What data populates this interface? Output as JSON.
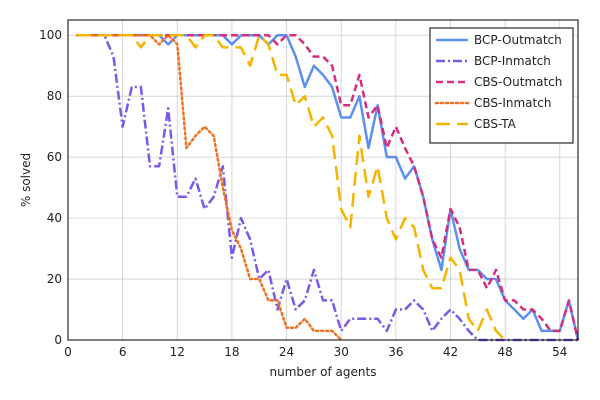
{
  "chart_data": {
    "type": "line",
    "title": "",
    "xlabel": "number of agents",
    "ylabel": "% solved",
    "xlim": [
      0,
      56
    ],
    "ylim": [
      0,
      105
    ],
    "xticks": [
      0,
      6,
      12,
      18,
      24,
      30,
      36,
      42,
      48,
      54
    ],
    "yticks": [
      0,
      20,
      40,
      60,
      80,
      100
    ],
    "grid": true,
    "legend_position": "top-right",
    "series": [
      {
        "name": "BCP-Outmatch",
        "color": "#5b8ff0",
        "dash": "solid",
        "x": [
          1,
          2,
          3,
          4,
          5,
          6,
          7,
          8,
          9,
          10,
          11,
          12,
          13,
          14,
          15,
          16,
          17,
          18,
          19,
          20,
          21,
          22,
          23,
          24,
          25,
          26,
          27,
          28,
          29,
          30,
          31,
          32,
          33,
          34,
          35,
          36,
          37,
          38,
          39,
          40,
          41,
          42,
          43,
          44,
          45,
          46,
          47,
          48,
          49,
          50,
          51,
          52,
          53,
          54,
          55,
          56
        ],
        "y": [
          100,
          100,
          100,
          100,
          100,
          100,
          100,
          100,
          100,
          100,
          97,
          100,
          100,
          100,
          100,
          100,
          100,
          97,
          100,
          100,
          100,
          97,
          100,
          100,
          93,
          83,
          90,
          87,
          83,
          73,
          73,
          80,
          63,
          77,
          60,
          60,
          53,
          57,
          47,
          33,
          23,
          43,
          30,
          23,
          23,
          20,
          20,
          13,
          10,
          7,
          10,
          3,
          3,
          3,
          13,
          0
        ]
      },
      {
        "name": "BCP-Inmatch",
        "color": "#7b59e8",
        "dash": "dashdot",
        "x": [
          1,
          2,
          3,
          4,
          5,
          6,
          7,
          8,
          9,
          10,
          11,
          12,
          13,
          14,
          15,
          16,
          17,
          18,
          19,
          20,
          21,
          22,
          23,
          24,
          25,
          26,
          27,
          28,
          29,
          30,
          31,
          32,
          33,
          34,
          35,
          36,
          37,
          38,
          39,
          40,
          41,
          42,
          43,
          44,
          45,
          46,
          47,
          48,
          49,
          50,
          51,
          52,
          53,
          54,
          55,
          56
        ],
        "y": [
          100,
          100,
          100,
          100,
          93,
          70,
          83,
          83,
          57,
          57,
          76,
          47,
          47,
          53,
          43,
          47,
          57,
          27,
          40,
          33,
          20,
          23,
          10,
          20,
          10,
          13,
          23,
          13,
          13,
          3,
          7,
          7,
          7,
          7,
          3,
          10,
          10,
          13,
          10,
          3,
          7,
          10,
          7,
          3,
          0,
          0,
          0,
          0,
          0,
          0,
          0,
          0,
          0,
          0,
          0,
          0
        ]
      },
      {
        "name": "CBS-Outmatch",
        "color": "#d62c7e",
        "dash": "dashed",
        "x": [
          1,
          2,
          3,
          4,
          5,
          6,
          7,
          8,
          9,
          10,
          11,
          12,
          13,
          14,
          15,
          16,
          17,
          18,
          19,
          20,
          21,
          22,
          23,
          24,
          25,
          26,
          27,
          28,
          29,
          30,
          31,
          32,
          33,
          34,
          35,
          36,
          37,
          38,
          39,
          40,
          41,
          42,
          43,
          44,
          45,
          46,
          47,
          48,
          49,
          50,
          51,
          52,
          53,
          54,
          55,
          56
        ],
        "y": [
          100,
          100,
          100,
          100,
          100,
          100,
          100,
          100,
          100,
          100,
          100,
          100,
          100,
          100,
          100,
          100,
          100,
          100,
          100,
          100,
          100,
          100,
          97,
          100,
          100,
          97,
          93,
          93,
          90,
          77,
          77,
          87,
          73,
          77,
          63,
          70,
          63,
          57,
          47,
          33,
          27,
          43,
          37,
          23,
          23,
          17,
          23,
          13,
          13,
          10,
          10,
          7,
          3,
          3,
          13,
          0
        ]
      },
      {
        "name": "CBS-Inmatch",
        "color": "#f07020",
        "dash": "dotted",
        "x": [
          1,
          2,
          3,
          4,
          5,
          6,
          7,
          8,
          9,
          10,
          11,
          12,
          13,
          14,
          15,
          16,
          17,
          18,
          19,
          20,
          21,
          22,
          23,
          24,
          25,
          26,
          27,
          28,
          29,
          30
        ],
        "y": [
          100,
          100,
          100,
          100,
          100,
          100,
          100,
          100,
          100,
          97,
          100,
          97,
          63,
          67,
          70,
          67,
          50,
          36,
          30,
          20,
          20,
          13,
          13,
          4,
          4,
          7,
          3,
          3,
          3,
          0
        ]
      },
      {
        "name": "CBS-TA",
        "color": "#f5b400",
        "dash": "longdash",
        "x": [
          1,
          2,
          3,
          4,
          5,
          6,
          7,
          8,
          9,
          10,
          11,
          12,
          13,
          14,
          15,
          16,
          17,
          18,
          19,
          20,
          21,
          22,
          23,
          24,
          25,
          26,
          27,
          28,
          29,
          30,
          31,
          32,
          33,
          34,
          35,
          36,
          37,
          38,
          39,
          40,
          41,
          42,
          43,
          44,
          45,
          46,
          47,
          48
        ],
        "y": [
          100,
          100,
          100,
          100,
          100,
          100,
          100,
          96,
          100,
          100,
          100,
          100,
          100,
          96,
          100,
          100,
          96,
          96,
          96,
          90,
          100,
          97,
          87,
          87,
          77,
          80,
          70,
          73,
          67,
          43,
          37,
          67,
          47,
          57,
          40,
          33,
          40,
          37,
          23,
          17,
          17,
          27,
          23,
          7,
          3,
          10,
          3,
          0
        ]
      }
    ]
  }
}
